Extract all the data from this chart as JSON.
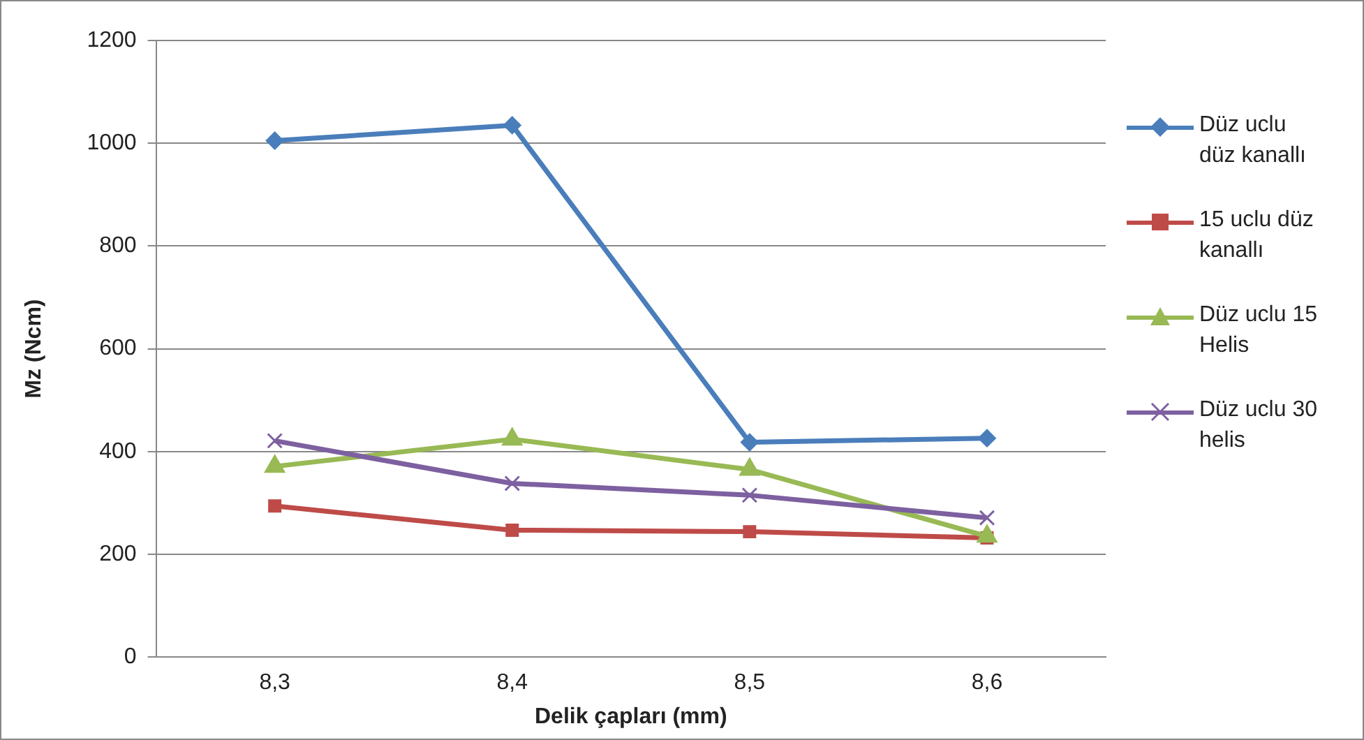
{
  "chart_data": {
    "type": "line",
    "xlabel": "Delik çapları (mm)",
    "ylabel": "Mz (Ncm)",
    "categories": [
      "8,3",
      "8,4",
      "8,5",
      "8,6"
    ],
    "series": [
      {
        "name": "Düz uclu düz kanallı",
        "color": "#4a7ebb",
        "marker": "diamond",
        "values": [
          1005,
          1035,
          418,
          426
        ]
      },
      {
        "name": "15 uclu düz kanallı",
        "color": "#be4b48",
        "marker": "square",
        "values": [
          294,
          247,
          244,
          232
        ]
      },
      {
        "name": "Düz uclu 15 Helis",
        "color": "#98b954",
        "marker": "triangle",
        "values": [
          371,
          424,
          365,
          235
        ]
      },
      {
        "name": "Düz uclu 30 helis",
        "color": "#7d60a0",
        "marker": "cross",
        "values": [
          421,
          338,
          315,
          271
        ]
      }
    ],
    "ylim": [
      0,
      1200
    ],
    "yticks": [
      0,
      200,
      400,
      600,
      800,
      1000,
      1200
    ],
    "grid": "y",
    "legend": "right",
    "line_style": "solid"
  }
}
